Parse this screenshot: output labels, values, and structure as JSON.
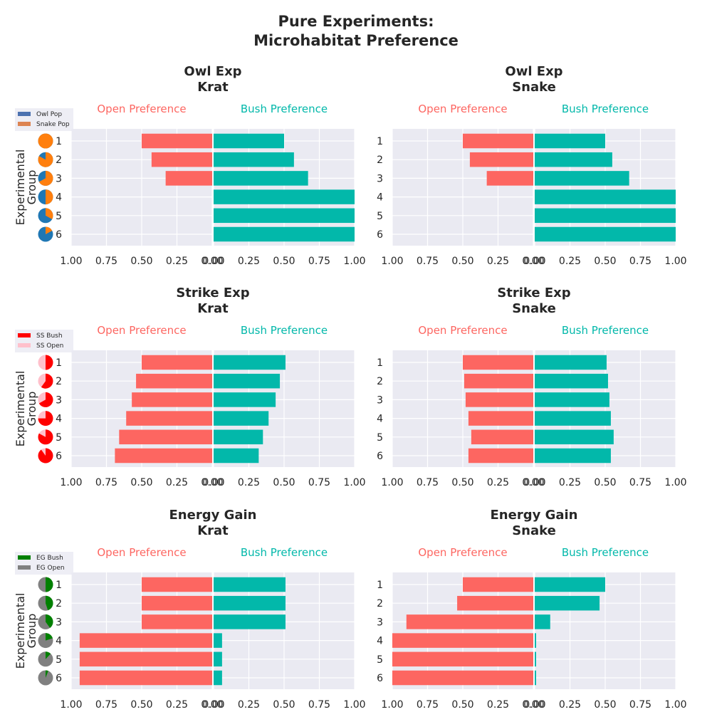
{
  "title_line1": "Pure Experiments:",
  "title_line2": "Microhabitat Preference",
  "colors": {
    "open": "#fd6661",
    "bush": "#02b8aa",
    "panel_bg": "#eaeaf2",
    "grid": "#ffffff",
    "owl_pop": "#4c72b0",
    "snake_pop": "#dd8452",
    "pie_owl": "#1f77b4",
    "pie_snake": "#ff7f0e",
    "ss_bush": "#ff0000",
    "ss_open": "#ffc0cb",
    "eg_bush": "#008000",
    "eg_open": "#808080"
  },
  "labels": {
    "open_pref": "Open Preference",
    "bush_pref": "Bush Preference",
    "ylabel_1": "Experimental",
    "ylabel_2": "Group"
  },
  "x_ticks": [
    "1.00",
    "0.75",
    "0.50",
    "0.25",
    "0.00",
    "0.00",
    "0.25",
    "0.50",
    "0.75",
    "1.00"
  ],
  "legends": [
    {
      "items": [
        {
          "label": "Owl Pop",
          "color": "#4c72b0"
        },
        {
          "label": "Snake Pop",
          "color": "#dd8452"
        }
      ]
    },
    {
      "items": [
        {
          "label": "SS Bush",
          "color": "#ff0000"
        },
        {
          "label": "SS Open",
          "color": "#ffc0cb"
        }
      ]
    },
    {
      "items": [
        {
          "label": "EG Bush",
          "color": "#008000"
        },
        {
          "label": "EG Open",
          "color": "#808080"
        }
      ]
    }
  ],
  "pies": [
    {
      "bg": "#1f77b4",
      "fg": "#ff7f0e",
      "fg_fractions": [
        1.0,
        0.83,
        0.67,
        0.5,
        0.33,
        0.17
      ]
    },
    {
      "bg": "#ffc0cb",
      "fg": "#ff0000",
      "fg_fractions": [
        0.5,
        0.6,
        0.67,
        0.75,
        0.83,
        0.9
      ]
    },
    {
      "bg": "#808080",
      "fg": "#008000",
      "fg_fractions": [
        0.5,
        0.45,
        0.4,
        0.2,
        0.12,
        0.06
      ]
    }
  ],
  "chart_data": [
    {
      "type": "bar",
      "orientation": "horizontal-diverging",
      "title": "Owl Exp",
      "subtitle": "Krat",
      "categories": [
        "1",
        "2",
        "3",
        "4",
        "5",
        "6"
      ],
      "series": [
        {
          "name": "Open Preference",
          "values": [
            0.5,
            0.43,
            0.33,
            0.0,
            0.0,
            0.0
          ]
        },
        {
          "name": "Bush Preference",
          "values": [
            0.5,
            0.57,
            0.67,
            1.0,
            1.0,
            1.0
          ]
        }
      ],
      "xlim": [
        0,
        1
      ]
    },
    {
      "type": "bar",
      "orientation": "horizontal-diverging",
      "title": "Owl Exp",
      "subtitle": "Snake",
      "categories": [
        "1",
        "2",
        "3",
        "4",
        "5",
        "6"
      ],
      "series": [
        {
          "name": "Open Preference",
          "values": [
            0.5,
            0.45,
            0.33,
            0.0,
            0.0,
            0.0
          ]
        },
        {
          "name": "Bush Preference",
          "values": [
            0.5,
            0.55,
            0.67,
            1.0,
            1.0,
            1.0
          ]
        }
      ],
      "xlim": [
        0,
        1
      ]
    },
    {
      "type": "bar",
      "orientation": "horizontal-diverging",
      "title": "Strike Exp",
      "subtitle": "Krat",
      "categories": [
        "1",
        "2",
        "3",
        "4",
        "5",
        "6"
      ],
      "series": [
        {
          "name": "Open Preference",
          "values": [
            0.5,
            0.54,
            0.57,
            0.61,
            0.66,
            0.69
          ]
        },
        {
          "name": "Bush Preference",
          "values": [
            0.51,
            0.47,
            0.44,
            0.39,
            0.35,
            0.32
          ]
        }
      ],
      "xlim": [
        0,
        1
      ]
    },
    {
      "type": "bar",
      "orientation": "horizontal-diverging",
      "title": "Strike Exp",
      "subtitle": "Snake",
      "categories": [
        "1",
        "2",
        "3",
        "4",
        "5",
        "6"
      ],
      "series": [
        {
          "name": "Open Preference",
          "values": [
            0.5,
            0.49,
            0.48,
            0.46,
            0.44,
            0.46
          ]
        },
        {
          "name": "Bush Preference",
          "values": [
            0.51,
            0.52,
            0.53,
            0.54,
            0.56,
            0.54
          ]
        }
      ],
      "xlim": [
        0,
        1
      ]
    },
    {
      "type": "bar",
      "orientation": "horizontal-diverging",
      "title": "Energy Gain",
      "subtitle": "Krat",
      "categories": [
        "1",
        "2",
        "3",
        "4",
        "5",
        "6"
      ],
      "series": [
        {
          "name": "Open Preference",
          "values": [
            0.5,
            0.5,
            0.5,
            0.94,
            0.94,
            0.94
          ]
        },
        {
          "name": "Bush Preference",
          "values": [
            0.51,
            0.51,
            0.51,
            0.06,
            0.06,
            0.06
          ]
        }
      ],
      "xlim": [
        0,
        1
      ]
    },
    {
      "type": "bar",
      "orientation": "horizontal-diverging",
      "title": "Energy Gain",
      "subtitle": "Snake",
      "categories": [
        "1",
        "2",
        "3",
        "4",
        "5",
        "6"
      ],
      "series": [
        {
          "name": "Open Preference",
          "values": [
            0.5,
            0.54,
            0.9,
            1.0,
            1.0,
            1.0
          ]
        },
        {
          "name": "Bush Preference",
          "values": [
            0.5,
            0.46,
            0.11,
            0.01,
            0.01,
            0.01
          ]
        }
      ],
      "xlim": [
        0,
        1
      ]
    }
  ]
}
